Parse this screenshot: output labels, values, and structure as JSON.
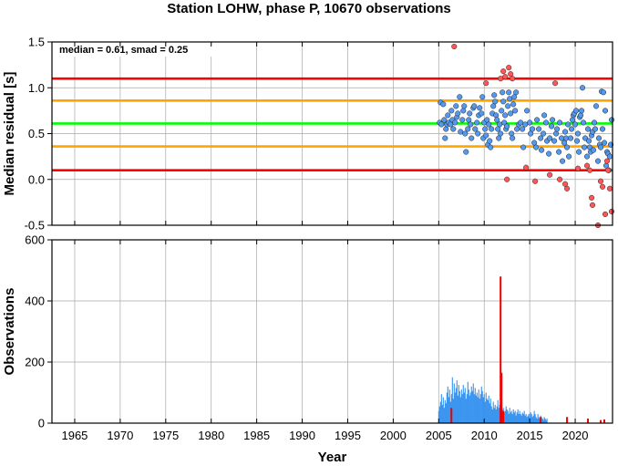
{
  "title": "Station LOHW, phase P, 10670 observations",
  "chart_data": [
    {
      "type": "scatter",
      "ylabel": "Median residual [s]",
      "annotation": "median = 0.61, smad = 0.25",
      "xlim": [
        1962.5,
        2024.1
      ],
      "ylim": [
        -0.5,
        1.5
      ],
      "yticks": [
        "-0.5",
        "0.0",
        "0.5",
        "1.0",
        "1.5"
      ],
      "grid": true,
      "hlines": [
        {
          "y": 1.1,
          "color": "#ff0000"
        },
        {
          "y": 0.86,
          "color": "#ffa500"
        },
        {
          "y": 0.61,
          "color": "#00ff00"
        },
        {
          "y": 0.36,
          "color": "#ffa500"
        },
        {
          "y": 0.1,
          "color": "#ff0000"
        }
      ],
      "series": [
        {
          "color": "#5599ee",
          "points": [
            [
              2005.1,
              0.62
            ],
            [
              2005.2,
              0.84
            ],
            [
              2005.3,
              0.6
            ],
            [
              2005.5,
              0.82
            ],
            [
              2005.6,
              0.65
            ],
            [
              2005.7,
              0.45
            ],
            [
              2005.8,
              0.55
            ],
            [
              2005.9,
              0.6
            ],
            [
              2006.0,
              0.7
            ],
            [
              2006.1,
              0.62
            ],
            [
              2006.3,
              0.6
            ],
            [
              2006.4,
              0.75
            ],
            [
              2006.5,
              0.65
            ],
            [
              2006.6,
              0.55
            ],
            [
              2006.8,
              0.62
            ],
            [
              2006.9,
              0.8
            ],
            [
              2007.0,
              0.68
            ],
            [
              2007.1,
              0.72
            ],
            [
              2007.3,
              0.9
            ],
            [
              2007.4,
              0.52
            ],
            [
              2007.6,
              0.65
            ],
            [
              2007.7,
              0.75
            ],
            [
              2007.8,
              0.8
            ],
            [
              2007.9,
              0.5
            ],
            [
              2008.0,
              0.3
            ],
            [
              2008.2,
              0.55
            ],
            [
              2008.3,
              0.65
            ],
            [
              2008.4,
              0.72
            ],
            [
              2008.5,
              0.6
            ],
            [
              2008.6,
              0.45
            ],
            [
              2008.8,
              0.78
            ],
            [
              2008.9,
              0.8
            ],
            [
              2009.0,
              0.55
            ],
            [
              2009.2,
              0.62
            ],
            [
              2009.3,
              0.5
            ],
            [
              2009.4,
              0.7
            ],
            [
              2009.5,
              0.78
            ],
            [
              2009.7,
              0.72
            ],
            [
              2009.8,
              0.9
            ],
            [
              2009.9,
              0.45
            ],
            [
              2010.0,
              0.62
            ],
            [
              2010.1,
              0.55
            ],
            [
              2010.2,
              0.48
            ],
            [
              2010.3,
              0.65
            ],
            [
              2010.4,
              0.38
            ],
            [
              2010.5,
              0.6
            ],
            [
              2010.6,
              0.42
            ],
            [
              2010.7,
              0.35
            ],
            [
              2010.8,
              0.55
            ],
            [
              2010.9,
              0.72
            ],
            [
              2011.0,
              0.8
            ],
            [
              2011.1,
              0.92
            ],
            [
              2011.2,
              0.85
            ],
            [
              2011.3,
              0.7
            ],
            [
              2011.4,
              0.65
            ],
            [
              2011.5,
              0.55
            ],
            [
              2011.6,
              0.45
            ],
            [
              2011.7,
              0.6
            ],
            [
              2011.8,
              0.5
            ],
            [
              2011.9,
              0.75
            ],
            [
              2012.0,
              0.95
            ],
            [
              2012.1,
              0.85
            ],
            [
              2012.2,
              0.62
            ],
            [
              2012.3,
              0.7
            ],
            [
              2012.4,
              0.55
            ],
            [
              2012.5,
              0.58
            ],
            [
              2012.6,
              0.8
            ],
            [
              2012.7,
              0.95
            ],
            [
              2012.8,
              0.88
            ],
            [
              2012.9,
              0.72
            ],
            [
              2013.0,
              0.5
            ],
            [
              2013.1,
              0.45
            ],
            [
              2013.2,
              0.82
            ],
            [
              2013.3,
              0.9
            ],
            [
              2013.4,
              0.75
            ],
            [
              2013.5,
              0.95
            ],
            [
              2013.6,
              0.55
            ],
            [
              2013.8,
              0.6
            ],
            [
              2014.0,
              0.62
            ],
            [
              2014.2,
              0.55
            ],
            [
              2014.3,
              0.35
            ],
            [
              2014.5,
              0.6
            ],
            [
              2014.7,
              0.75
            ],
            [
              2015.0,
              0.62
            ],
            [
              2015.1,
              0.5
            ],
            [
              2015.3,
              0.55
            ],
            [
              2015.5,
              0.4
            ],
            [
              2015.7,
              0.35
            ],
            [
              2015.8,
              0.65
            ],
            [
              2016.0,
              0.55
            ],
            [
              2016.2,
              0.45
            ],
            [
              2016.3,
              0.32
            ],
            [
              2016.5,
              0.5
            ],
            [
              2016.6,
              0.7
            ],
            [
              2016.8,
              0.62
            ],
            [
              2016.9,
              0.42
            ],
            [
              2017.1,
              0.28
            ],
            [
              2017.2,
              0.45
            ],
            [
              2017.4,
              0.58
            ],
            [
              2017.5,
              0.65
            ],
            [
              2017.7,
              0.42
            ],
            [
              2017.9,
              0.5
            ],
            [
              2018.0,
              0.55
            ],
            [
              2018.2,
              0.3
            ],
            [
              2018.3,
              0.62
            ],
            [
              2018.5,
              0.45
            ],
            [
              2018.6,
              0.2
            ],
            [
              2018.8,
              0.4
            ],
            [
              2018.9,
              0.52
            ],
            [
              2019.0,
              0.45
            ],
            [
              2019.1,
              0.35
            ],
            [
              2019.2,
              0.6
            ],
            [
              2019.3,
              0.25
            ],
            [
              2019.5,
              0.45
            ],
            [
              2019.6,
              0.55
            ],
            [
              2019.7,
              0.65
            ],
            [
              2019.8,
              0.7
            ],
            [
              2019.9,
              0.72
            ],
            [
              2020.0,
              0.6
            ],
            [
              2020.1,
              0.75
            ],
            [
              2020.2,
              0.42
            ],
            [
              2020.3,
              0.5
            ],
            [
              2020.4,
              0.3
            ],
            [
              2020.5,
              0.68
            ],
            [
              2020.6,
              0.7
            ],
            [
              2020.7,
              0.75
            ],
            [
              2020.8,
              1.0
            ],
            [
              2020.9,
              0.62
            ],
            [
              2021.0,
              0.35
            ],
            [
              2021.1,
              0.45
            ],
            [
              2021.3,
              0.25
            ],
            [
              2021.4,
              0.55
            ],
            [
              2021.5,
              0.42
            ],
            [
              2021.6,
              0.35
            ],
            [
              2021.7,
              0.3
            ],
            [
              2021.8,
              0.48
            ],
            [
              2021.9,
              0.52
            ],
            [
              2022.0,
              0.32
            ],
            [
              2022.1,
              0.62
            ],
            [
              2022.2,
              0.55
            ],
            [
              2022.3,
              0.8
            ],
            [
              2022.5,
              0.2
            ],
            [
              2022.6,
              0.45
            ],
            [
              2022.7,
              0.38
            ],
            [
              2022.8,
              0.35
            ],
            [
              2022.9,
              0.96
            ],
            [
              2023.0,
              0.55
            ],
            [
              2023.1,
              0.95
            ],
            [
              2023.2,
              0.4
            ],
            [
              2023.3,
              0.75
            ],
            [
              2023.4,
              0.15
            ],
            [
              2023.5,
              0.3
            ],
            [
              2023.6,
              0.28
            ],
            [
              2023.7,
              0.1
            ],
            [
              2023.8,
              0.25
            ],
            [
              2023.9,
              0.38
            ],
            [
              2024.0,
              0.65
            ]
          ]
        },
        {
          "color": "#ff5555",
          "points": [
            [
              2006.7,
              1.45
            ],
            [
              2010.2,
              1.05
            ],
            [
              2011.8,
              1.1
            ],
            [
              2012.1,
              1.18
            ],
            [
              2012.3,
              1.12
            ],
            [
              2012.5,
              0.0
            ],
            [
              2012.7,
              1.22
            ],
            [
              2012.9,
              1.15
            ],
            [
              2013.1,
              1.1
            ],
            [
              2014.6,
              0.13
            ],
            [
              2015.6,
              -0.02
            ],
            [
              2017.2,
              0.05
            ],
            [
              2017.8,
              1.05
            ],
            [
              2018.3,
              0.0
            ],
            [
              2018.9,
              -0.05
            ],
            [
              2019.1,
              -0.1
            ],
            [
              2020.3,
              0.12
            ],
            [
              2021.3,
              0.15
            ],
            [
              2021.6,
              0.1
            ],
            [
              2021.8,
              -0.2
            ],
            [
              2021.9,
              -0.28
            ],
            [
              2022.5,
              -0.5
            ],
            [
              2022.8,
              -0.02
            ],
            [
              2023.0,
              -0.08
            ],
            [
              2023.3,
              -0.38
            ],
            [
              2023.5,
              0.2
            ],
            [
              2023.6,
              0.1
            ],
            [
              2023.8,
              -0.1
            ],
            [
              2024.0,
              -0.35
            ]
          ]
        }
      ]
    },
    {
      "type": "bar",
      "xlabel": "Year",
      "ylabel": "Observations",
      "xlim": [
        1962.5,
        2024.1
      ],
      "ylim": [
        0,
        600
      ],
      "xticks": [
        "1965",
        "1970",
        "1975",
        "1980",
        "1985",
        "1990",
        "1995",
        "2000",
        "2005",
        "2010",
        "2015",
        "2020"
      ],
      "yticks": [
        "0",
        "200",
        "400",
        "600"
      ],
      "grid": true,
      "series": [
        {
          "color": "#2288ee",
          "start": 2005.0,
          "step": 0.1,
          "values": [
            40,
            55,
            70,
            95,
            60,
            85,
            50,
            75,
            65,
            100,
            120,
            85,
            110,
            70,
            95,
            150,
            80,
            130,
            100,
            115,
            140,
            90,
            125,
            105,
            85,
            110,
            95,
            125,
            100,
            115,
            80,
            95,
            135,
            110,
            90,
            100,
            120,
            105,
            130,
            95,
            115,
            90,
            100,
            85,
            110,
            80,
            95,
            120,
            105,
            85,
            95,
            70,
            100,
            80,
            75,
            90,
            65,
            80,
            55,
            45,
            70,
            50,
            60,
            45,
            55,
            75,
            50,
            60,
            40,
            55,
            45,
            50,
            35,
            40,
            55,
            45,
            40,
            30,
            50,
            35,
            40,
            30,
            45,
            35,
            40,
            25,
            35,
            45,
            30,
            40,
            30,
            25,
            35,
            30,
            40,
            25,
            30,
            20,
            25,
            30,
            20,
            35,
            30,
            20,
            25,
            40,
            30,
            20,
            15,
            30,
            20,
            15,
            25,
            20,
            15,
            10,
            20,
            15,
            10,
            15
          ]
        },
        {
          "color": "#ee0000",
          "bars": [
            [
              2006.4,
              50
            ],
            [
              2011.8,
              480
            ],
            [
              2011.9,
              165
            ],
            [
              2012.1,
              40
            ],
            [
              2016.2,
              20
            ],
            [
              2019.1,
              20
            ],
            [
              2021.4,
              15
            ],
            [
              2022.8,
              10
            ],
            [
              2023.2,
              12
            ]
          ]
        }
      ]
    }
  ]
}
